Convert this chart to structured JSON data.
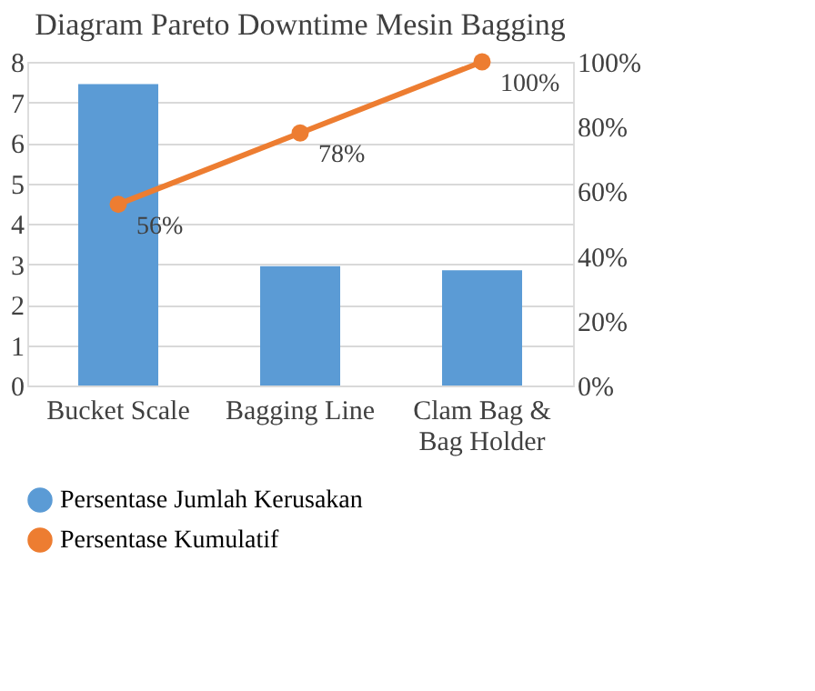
{
  "chart_data": {
    "type": "bar",
    "title": "Diagram Pareto Downtime Mesin Bagging",
    "categories": [
      "Bucket Scale",
      "Bagging Line",
      "Clam Bag & Bag Holder"
    ],
    "series": [
      {
        "name": "Persentase Jumlah Kerusakan",
        "type": "bar",
        "color": "#5b9bd5",
        "values": [
          7.45,
          2.95,
          2.85
        ]
      },
      {
        "name": "Persentase Kumulatif",
        "type": "line",
        "axis": "y2",
        "color": "#ed7d31",
        "values": [
          56,
          78,
          100
        ],
        "value_labels": [
          "56%",
          "78%",
          "100%"
        ]
      }
    ],
    "ylim": [
      0,
      8
    ],
    "yticks": [
      0,
      1,
      2,
      3,
      4,
      5,
      6,
      7,
      8
    ],
    "y2lim": [
      0,
      100
    ],
    "y2ticks": [
      {
        "value": 0,
        "label": "0%"
      },
      {
        "value": 20,
        "label": "20%"
      },
      {
        "value": 40,
        "label": "40%"
      },
      {
        "value": 60,
        "label": "60%"
      },
      {
        "value": 80,
        "label": "80%"
      },
      {
        "value": 100,
        "label": "100%"
      }
    ],
    "grid": "y",
    "legend": "bottom",
    "marker": "circle"
  }
}
